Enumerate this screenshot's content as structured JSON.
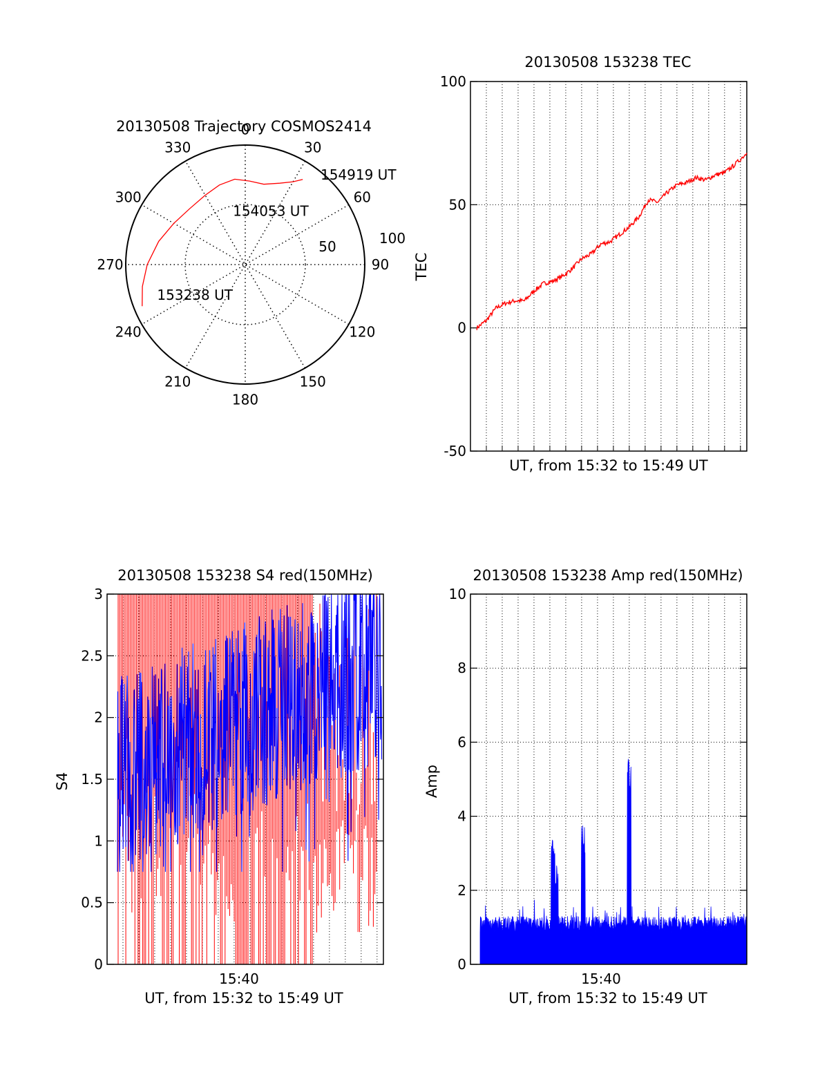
{
  "chart_data": [
    {
      "id": "trajectory",
      "type": "polar",
      "title": "20130508 Trajectory COSMOS2414",
      "angle_labels": [
        "0",
        "30",
        "60",
        "90",
        "120",
        "150",
        "180",
        "210",
        "240",
        "270",
        "300",
        "330"
      ],
      "radius_labels": [
        "50",
        "100"
      ],
      "r_max": 100,
      "series_color": "#ff0000",
      "track": [
        {
          "az": 248,
          "r": 93
        },
        {
          "az": 258,
          "r": 88
        },
        {
          "az": 270,
          "r": 82
        },
        {
          "az": 285,
          "r": 75
        },
        {
          "az": 300,
          "r": 69
        },
        {
          "az": 315,
          "r": 66
        },
        {
          "az": 330,
          "r": 67
        },
        {
          "az": 342,
          "r": 70
        },
        {
          "az": 353,
          "r": 72
        },
        {
          "az": 3,
          "r": 70
        },
        {
          "az": 13,
          "r": 69
        },
        {
          "az": 23,
          "r": 74
        },
        {
          "az": 30,
          "r": 80
        },
        {
          "az": 34,
          "r": 86
        }
      ],
      "annotations": [
        {
          "text": "153238 UT",
          "az": 251,
          "r": 78
        },
        {
          "text": "154053 UT",
          "az": 347,
          "r": 46
        },
        {
          "text": "154919 UT",
          "az": 40,
          "r": 98
        }
      ]
    },
    {
      "id": "tec",
      "type": "line",
      "title": "20130508 153238 TEC",
      "xlabel": "UT, from 15:32 to 15:49 UT",
      "ylabel": "TEC",
      "ylim": [
        -50,
        100
      ],
      "yticks": [
        "-50",
        "0",
        "50",
        "100"
      ],
      "xlim_minutes": [
        0,
        17.4
      ],
      "series_color": "#ff0000",
      "x": [
        0.4,
        1.0,
        1.6,
        2.2,
        2.8,
        3.4,
        4.0,
        4.6,
        5.2,
        5.8,
        6.4,
        7.0,
        7.6,
        8.2,
        8.8,
        9.4,
        10.0,
        10.6,
        11.2,
        11.8,
        12.4,
        13.0,
        13.6,
        14.2,
        14.8,
        15.4,
        16.0,
        16.6,
        17.4
      ],
      "y": [
        0,
        3,
        8,
        10,
        11,
        11,
        15,
        18,
        19,
        21,
        24,
        28,
        30,
        34,
        35,
        38,
        41,
        45,
        52,
        51,
        55,
        58,
        59,
        61,
        60,
        62,
        63,
        66,
        71
      ]
    },
    {
      "id": "s4",
      "type": "line",
      "title": "20130508 153238 S4 red(150MHz)",
      "xlabel": "UT, from 15:32 to 15:49 UT",
      "ylabel": "S4",
      "ylim": [
        0,
        3
      ],
      "yticks": [
        "0",
        "0.5",
        "1",
        "1.5",
        "2",
        "2.5",
        "3"
      ],
      "xtick_label": "15:40",
      "xlim_minutes": [
        0,
        17.4
      ],
      "series": [
        {
          "name": "red",
          "color": "#ff0000"
        },
        {
          "name": "blue",
          "color": "#0000ff"
        }
      ]
    },
    {
      "id": "amp",
      "type": "line",
      "title": "20130508 153238 Amp red(150MHz)",
      "xlabel": "UT, from 15:32 to 15:49 UT",
      "ylabel": "Amp",
      "ylim": [
        0,
        10
      ],
      "yticks": [
        "0",
        "2",
        "4",
        "6",
        "8",
        "10"
      ],
      "xtick_label": "15:40",
      "xlim_minutes": [
        0,
        17.4
      ],
      "series_color": "#0000ff",
      "peaks": [
        {
          "minute": 5.2,
          "value": 3.4
        },
        {
          "minute": 5.4,
          "value": 2.7
        },
        {
          "minute": 7.1,
          "value": 3.8
        },
        {
          "minute": 10.0,
          "value": 5.6
        }
      ]
    }
  ]
}
